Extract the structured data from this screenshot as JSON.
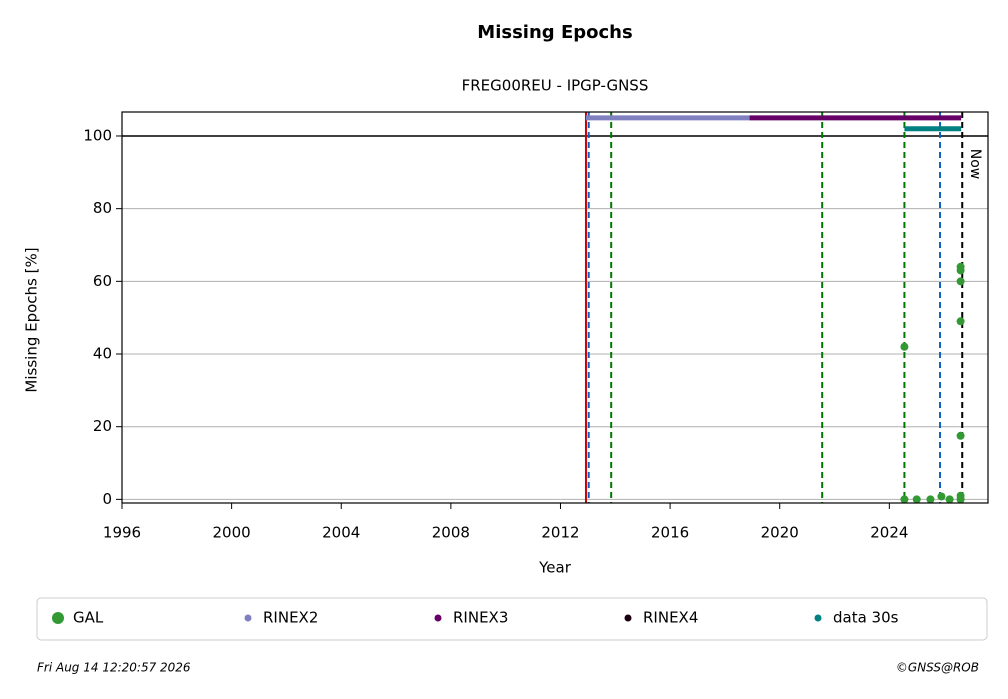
{
  "chart_data": {
    "type": "scatter",
    "title": "Missing Epochs",
    "subtitle": "FREG00REU - IPGP-GNSS",
    "x_label": "Year",
    "y_label": "Missing Epochs [%]",
    "xlim": [
      1996,
      2027.6
    ],
    "ylim": [
      -1,
      106.6
    ],
    "xticks": [
      1996,
      2000,
      2004,
      2008,
      2012,
      2016,
      2020,
      2024
    ],
    "yticks": [
      0,
      20,
      40,
      60,
      80,
      100
    ],
    "grid": true,
    "reference_line": 100,
    "vlines": [
      {
        "x": 2012.93,
        "color": "#cc0000",
        "style": "solid"
      },
      {
        "x": 2013.03,
        "color": "#1060c0",
        "style": "dashed"
      },
      {
        "x": 2013.85,
        "color": "#007700",
        "style": "dashed"
      },
      {
        "x": 2021.55,
        "color": "#007700",
        "style": "dashed"
      },
      {
        "x": 2024.55,
        "color": "#007700",
        "style": "dashed"
      },
      {
        "x": 2025.85,
        "color": "#1060c0",
        "style": "dashed"
      },
      {
        "x": 2026.66,
        "color": "#000000",
        "style": "dashed",
        "label": "Now"
      }
    ],
    "series": [
      {
        "name": "GAL",
        "color": "#339933",
        "draw": "points",
        "x": [
          2024.55,
          2024.55,
          2025.0,
          2025.5,
          2025.9,
          2026.2,
          2026.6,
          2026.6,
          2026.6,
          2026.6,
          2026.6,
          2026.6,
          2026.6
        ],
        "values": [
          0,
          42,
          0,
          0,
          0.8,
          0,
          1,
          17.5,
          49,
          60,
          63,
          64,
          0
        ]
      },
      {
        "name": "RINEX2",
        "color": "#8080c0",
        "draw": "band",
        "x": [
          2012.93,
          2018.9
        ],
        "values": [
          105,
          105
        ]
      },
      {
        "name": "RINEX3",
        "color": "#660066",
        "draw": "band",
        "x": [
          2018.9,
          2026.62
        ],
        "values": [
          105,
          105
        ]
      },
      {
        "name": "RINEX4",
        "color": "#1a0010",
        "draw": "band",
        "x": [],
        "values": []
      },
      {
        "name": "data 30s",
        "color": "#008080",
        "draw": "band",
        "x": [
          2024.55,
          2026.62
        ],
        "values": [
          102,
          102
        ]
      }
    ]
  },
  "footer": {
    "timestamp": "Fri Aug 14 12:20:57 2026",
    "credit": "©GNSS@ROB"
  }
}
